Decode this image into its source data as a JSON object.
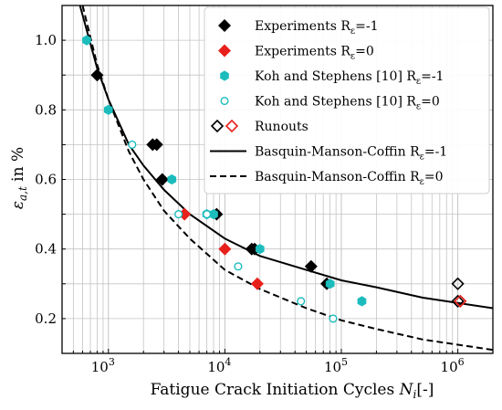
{
  "chart_data": {
    "type": "scatter",
    "xscale": "log",
    "xlim": [
      400,
      2000000
    ],
    "ylim": [
      0.1,
      1.1
    ],
    "grid": true,
    "xlabel": "Fatigue Crack Initiation Cycles N_i[-]",
    "ylabel": "ε_a,t in %",
    "x_ticks": [
      {
        "value": 1000,
        "base": "10",
        "exp": "3"
      },
      {
        "value": 10000,
        "base": "10",
        "exp": "4"
      },
      {
        "value": 100000,
        "base": "10",
        "exp": "5"
      },
      {
        "value": 1000000,
        "base": "10",
        "exp": "6"
      }
    ],
    "y_ticks": [
      {
        "value": 0.2,
        "label": "0.2"
      },
      {
        "value": 0.4,
        "label": "0.4"
      },
      {
        "value": 0.6,
        "label": "0.6"
      },
      {
        "value": 0.8,
        "label": "0.8"
      },
      {
        "value": 1.0,
        "label": "1.0"
      }
    ],
    "legend_position": "top-right",
    "series": [
      {
        "name": "Experiments R_ε=-1",
        "marker": "diamond-filled",
        "color": "#000000",
        "points": [
          [
            800,
            0.9
          ],
          [
            2400,
            0.7
          ],
          [
            2600,
            0.7
          ],
          [
            2900,
            0.6
          ],
          [
            8500,
            0.5
          ],
          [
            17000,
            0.4
          ],
          [
            18000,
            0.4
          ],
          [
            55000,
            0.35
          ],
          [
            75000,
            0.3
          ]
        ]
      },
      {
        "name": "Experiments R_ε=0",
        "marker": "diamond-filled",
        "color": "#e8201b",
        "points": [
          [
            4500,
            0.5
          ],
          [
            10000,
            0.4
          ],
          [
            19000,
            0.3
          ]
        ]
      },
      {
        "name": "Koh and Stephens [10] R_ε=-1",
        "marker": "hexagon-filled",
        "color": "#1cbcbc",
        "points": [
          [
            650,
            1.0
          ],
          [
            1000,
            0.8
          ],
          [
            3500,
            0.6
          ],
          [
            7000,
            0.5
          ],
          [
            8000,
            0.5
          ],
          [
            20000,
            0.4
          ],
          [
            80000,
            0.3
          ],
          [
            150000,
            0.25
          ]
        ]
      },
      {
        "name": "Koh and Stephens [10] R_ε=0",
        "marker": "circle-open",
        "color": "#1cbcbc",
        "points": [
          [
            1600,
            0.7
          ],
          [
            4000,
            0.5
          ],
          [
            7000,
            0.5
          ],
          [
            13000,
            0.35
          ],
          [
            45000,
            0.25
          ],
          [
            85000,
            0.2
          ]
        ]
      }
    ],
    "runouts": {
      "name": "Runouts",
      "points": [
        {
          "x": 1000000,
          "y": 0.3,
          "color": "#000000"
        },
        {
          "x": 1000000,
          "y": 0.25,
          "color": "#000000"
        },
        {
          "x": 1050000,
          "y": 0.25,
          "color": "#e8201b"
        }
      ]
    },
    "curves": [
      {
        "name": "Basquin-Manson-Coffin R_ε=-1",
        "style": "solid",
        "color": "#000000",
        "x": [
          570,
          800,
          1000,
          1500,
          2000,
          3000,
          5000,
          10000,
          20000,
          50000,
          100000,
          200000,
          500000,
          1000000,
          2000000
        ],
        "y": [
          1.1,
          0.92,
          0.83,
          0.7,
          0.64,
          0.57,
          0.5,
          0.43,
          0.38,
          0.34,
          0.31,
          0.29,
          0.26,
          0.245,
          0.23
        ]
      },
      {
        "name": "Basquin-Manson-Coffin R_ε=0",
        "style": "dashed",
        "color": "#000000",
        "x": [
          600,
          800,
          1000,
          1500,
          2000,
          3000,
          5000,
          10000,
          20000,
          50000,
          100000,
          200000,
          500000,
          1000000,
          2000000
        ],
        "y": [
          1.1,
          0.93,
          0.83,
          0.68,
          0.6,
          0.51,
          0.43,
          0.34,
          0.285,
          0.23,
          0.195,
          0.17,
          0.14,
          0.125,
          0.11
        ]
      }
    ]
  },
  "legend": [
    {
      "key": "exp-rm1",
      "main": "Experiments R",
      "sub": "ε",
      "rest": "=-1"
    },
    {
      "key": "exp-r0",
      "main": "Experiments R",
      "sub": "ε",
      "rest": "=0"
    },
    {
      "key": "koh-rm1",
      "main": "Koh and Stephens [10] R",
      "sub": "ε",
      "rest": "=-1"
    },
    {
      "key": "koh-r0",
      "main": "Koh and Stephens [10] R",
      "sub": "ε",
      "rest": "=0"
    },
    {
      "key": "runouts",
      "main": "Runouts",
      "sub": "",
      "rest": ""
    },
    {
      "key": "bmc-rm1",
      "main": "Basquin-Manson-Coffin R",
      "sub": "ε",
      "rest": "=-1"
    },
    {
      "key": "bmc-r0",
      "main": "Basquin-Manson-Coffin R",
      "sub": "ε",
      "rest": "=0"
    }
  ],
  "axis_titles": {
    "x_main": "Fatigue Crack Initiation Cycles ",
    "x_var": "N",
    "x_sub": "i",
    "x_unit": "[-]",
    "y_var": "ε",
    "y_sub": "a,t",
    "y_unit": " in %"
  }
}
